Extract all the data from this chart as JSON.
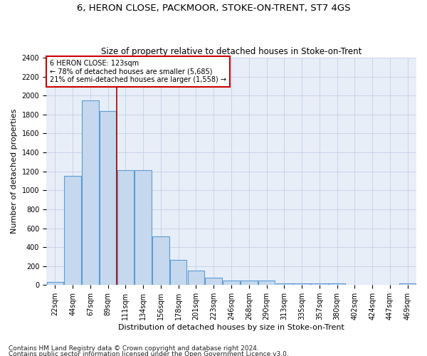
{
  "title": "6, HERON CLOSE, PACKMOOR, STOKE-ON-TRENT, ST7 4GS",
  "subtitle": "Size of property relative to detached houses in Stoke-on-Trent",
  "xlabel": "Distribution of detached houses by size in Stoke-on-Trent",
  "ylabel": "Number of detached properties",
  "bins": [
    "22sqm",
    "44sqm",
    "67sqm",
    "89sqm",
    "111sqm",
    "134sqm",
    "156sqm",
    "178sqm",
    "201sqm",
    "223sqm",
    "246sqm",
    "268sqm",
    "290sqm",
    "313sqm",
    "335sqm",
    "357sqm",
    "380sqm",
    "402sqm",
    "424sqm",
    "447sqm",
    "469sqm"
  ],
  "values": [
    30,
    1150,
    1950,
    1840,
    1210,
    1210,
    510,
    265,
    155,
    80,
    50,
    45,
    45,
    20,
    20,
    15,
    20,
    0,
    0,
    0,
    20
  ],
  "bar_color": "#c5d8ee",
  "bar_edge_color": "#5b9bd5",
  "grid_color": "#c8d4e8",
  "background_color": "#e8eef8",
  "vline_x": 3.5,
  "vline_color": "#aa0000",
  "annotation_line1": "6 HERON CLOSE: 123sqm",
  "annotation_line2": "← 78% of detached houses are smaller (5,685)",
  "annotation_line3": "21% of semi-detached houses are larger (1,558) →",
  "annotation_box_facecolor": "#ffffff",
  "annotation_box_edgecolor": "#cc0000",
  "footer1": "Contains HM Land Registry data © Crown copyright and database right 2024.",
  "footer2": "Contains public sector information licensed under the Open Government Licence v3.0.",
  "ylim": [
    0,
    2400
  ],
  "yticks": [
    0,
    200,
    400,
    600,
    800,
    1000,
    1200,
    1400,
    1600,
    1800,
    2000,
    2200,
    2400
  ],
  "title_fontsize": 9.5,
  "subtitle_fontsize": 8.5,
  "ylabel_fontsize": 8,
  "xlabel_fontsize": 8,
  "tick_fontsize": 7,
  "annot_fontsize": 7,
  "footer_fontsize": 6.5
}
